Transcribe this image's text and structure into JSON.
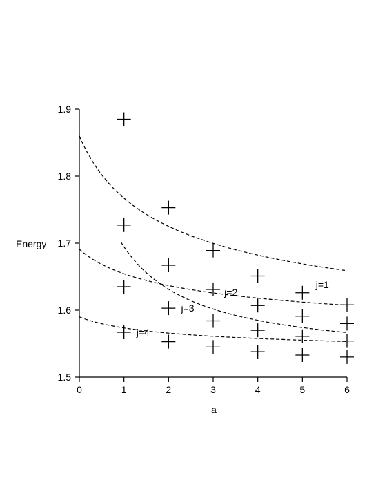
{
  "chart_data": {
    "type": "line",
    "title": "",
    "xlabel": "a",
    "ylabel": "Energy",
    "xlim": [
      0,
      6
    ],
    "ylim": [
      1.5,
      1.9
    ],
    "x_ticks": [
      0,
      1,
      2,
      3,
      4,
      5,
      6
    ],
    "y_ticks": [
      1.5,
      1.6,
      1.7,
      1.8,
      1.9
    ],
    "y_tick_labels": [
      "1.5",
      "1.6",
      "1.7",
      "1.8",
      "1.9"
    ],
    "grid": false,
    "series": [
      {
        "name": "j=1",
        "label_at": [
          5.3,
          1.638
        ],
        "fit_x_start": 0.93,
        "points": [
          [
            1,
            1.885
          ],
          [
            2,
            1.753
          ],
          [
            3,
            1.689
          ],
          [
            4,
            1.651
          ],
          [
            5,
            1.626
          ],
          [
            6,
            1.608
          ]
        ],
        "fit": {
          "c": 1.53,
          "A": 0.3784,
          "p": 1.2
        }
      },
      {
        "name": "j=2",
        "label_at": [
          3.25,
          1.627
        ],
        "fit_x_start": 0,
        "points": [
          [
            1,
            1.727
          ],
          [
            2,
            1.667
          ],
          [
            3,
            1.631
          ],
          [
            4,
            1.607
          ],
          [
            5,
            1.591
          ],
          [
            6,
            1.58
          ]
        ],
        "fit": {
          "c": 1.52,
          "A": 0.34,
          "p": 0.46
        }
      },
      {
        "name": "j=3",
        "label_at": [
          2.28,
          1.603
        ],
        "fit_x_start": 0,
        "points": [
          [
            1,
            1.635
          ],
          [
            2,
            1.603
          ],
          [
            3,
            1.584
          ],
          [
            4,
            1.57
          ],
          [
            5,
            1.561
          ],
          [
            6,
            1.554
          ]
        ],
        "fit": {
          "c": 1.525,
          "A": 0.166,
          "p": 0.36
        }
      },
      {
        "name": "j=4",
        "label_at": [
          1.28,
          1.567
        ],
        "fit_x_start": 0,
        "points": [
          [
            1,
            1.567
          ],
          [
            2,
            1.553
          ],
          [
            3,
            1.545
          ],
          [
            4,
            1.538
          ],
          [
            5,
            1.533
          ],
          [
            6,
            1.53
          ]
        ],
        "fit": {
          "c": 1.522,
          "A": 0.068,
          "p": 0.4
        }
      }
    ]
  }
}
